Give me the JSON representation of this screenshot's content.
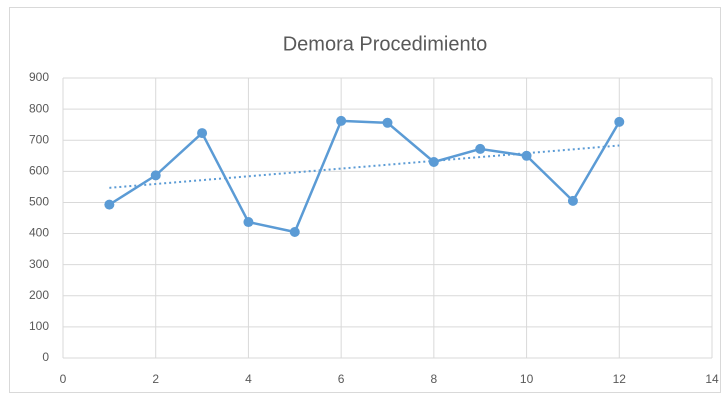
{
  "chart_data": {
    "type": "scatter",
    "title": "Demora Procedimiento",
    "x": [
      1,
      2,
      3,
      4,
      5,
      6,
      7,
      8,
      9,
      10,
      11,
      12
    ],
    "series": [
      {
        "color": "#5b9bd5",
        "values": [
          493,
          587,
          723,
          437,
          405,
          762,
          756,
          630,
          672,
          650,
          505,
          759
        ]
      }
    ],
    "trendline": {
      "color": "#5b9bd5",
      "x": [
        1,
        12
      ],
      "values": [
        547,
        683
      ]
    },
    "xlim": [
      0,
      14
    ],
    "xticks": [
      0,
      2,
      4,
      6,
      8,
      10,
      12,
      14
    ],
    "ylim": [
      0,
      900
    ],
    "yticks": [
      0,
      100,
      200,
      300,
      400,
      500,
      600,
      700,
      800,
      900
    ],
    "grid": true
  }
}
